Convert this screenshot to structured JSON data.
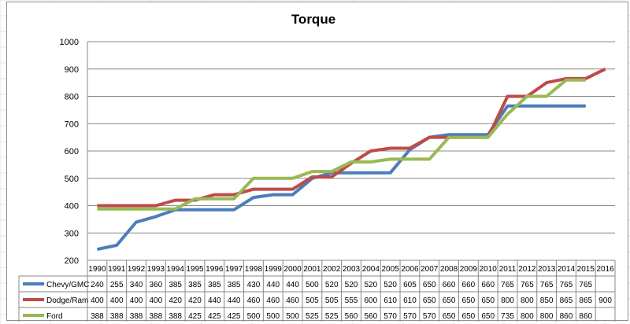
{
  "chart_data": {
    "type": "line",
    "title": "Torque",
    "categories": [
      "1990",
      "1991",
      "1992",
      "1993",
      "1994",
      "1995",
      "1996",
      "1997",
      "1998",
      "1999",
      "2000",
      "2001",
      "2002",
      "2003",
      "2004",
      "2005",
      "2006",
      "2007",
      "2008",
      "2009",
      "2010",
      "2011",
      "2012",
      "2013",
      "2014",
      "2015",
      "2016"
    ],
    "yticks": [
      "200",
      "300",
      "400",
      "500",
      "600",
      "700",
      "800",
      "900",
      "1000"
    ],
    "ylim": [
      200,
      1000
    ],
    "grid": true,
    "legend": "data-table-left",
    "series": [
      {
        "name": "Chevy/GMC",
        "color": "#4a7ebb",
        "values": [
          240,
          255,
          340,
          360,
          385,
          385,
          385,
          385,
          430,
          440,
          440,
          500,
          520,
          520,
          520,
          520,
          605,
          650,
          660,
          660,
          660,
          765,
          765,
          765,
          765,
          765,
          null
        ]
      },
      {
        "name": "Dodge/Ram",
        "color": "#be4b48",
        "values": [
          400,
          400,
          400,
          400,
          420,
          420,
          440,
          440,
          460,
          460,
          460,
          505,
          505,
          555,
          600,
          610,
          610,
          650,
          650,
          650,
          650,
          800,
          800,
          850,
          865,
          865,
          900
        ]
      },
      {
        "name": "Ford",
        "color": "#98b954",
        "values": [
          388,
          388,
          388,
          388,
          388,
          425,
          425,
          425,
          500,
          500,
          500,
          525,
          525,
          560,
          560,
          570,
          570,
          570,
          650,
          650,
          650,
          735,
          800,
          800,
          860,
          860,
          null
        ]
      }
    ]
  }
}
